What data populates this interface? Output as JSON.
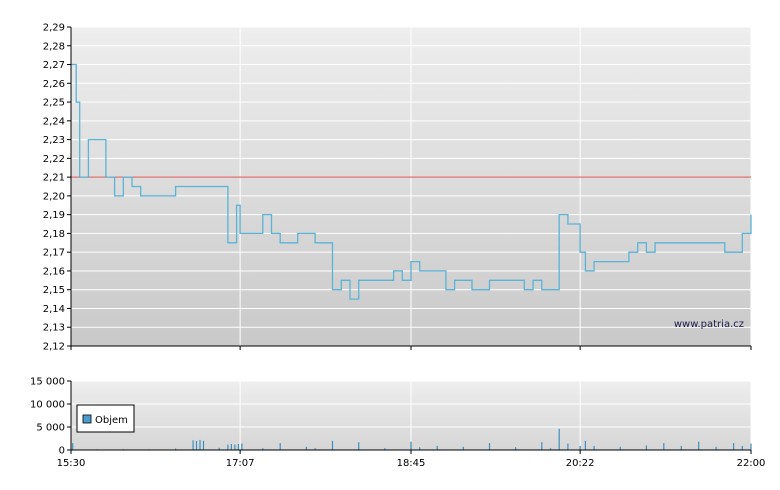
{
  "chart_data": [
    {
      "type": "line",
      "name": "price",
      "x": [
        "15:30",
        "15:33",
        "15:35",
        "15:40",
        "15:45",
        "15:50",
        "15:55",
        "16:00",
        "16:05",
        "16:07",
        "16:10",
        "16:15",
        "16:20",
        "16:25",
        "16:30",
        "16:35",
        "16:40",
        "16:45",
        "16:50",
        "16:55",
        "17:00",
        "17:05",
        "17:07",
        "17:10",
        "17:15",
        "17:20",
        "17:25",
        "17:30",
        "17:35",
        "17:40",
        "17:45",
        "17:50",
        "17:55",
        "18:00",
        "18:05",
        "18:08",
        "18:10",
        "18:15",
        "18:20",
        "18:25",
        "18:30",
        "18:35",
        "18:40",
        "18:45",
        "18:50",
        "18:55",
        "19:00",
        "19:05",
        "19:10",
        "19:15",
        "19:20",
        "19:25",
        "19:30",
        "19:35",
        "19:40",
        "19:45",
        "19:50",
        "19:55",
        "20:00",
        "20:05",
        "20:10",
        "20:15",
        "20:20",
        "20:22",
        "20:25",
        "20:30",
        "20:35",
        "20:40",
        "20:45",
        "20:50",
        "20:55",
        "21:00",
        "21:05",
        "21:10",
        "21:15",
        "21:20",
        "21:25",
        "21:30",
        "21:35",
        "21:40",
        "21:45",
        "21:50",
        "21:55",
        "22:00"
      ],
      "y": [
        2.27,
        2.25,
        2.21,
        2.23,
        2.23,
        2.21,
        2.2,
        2.21,
        2.205,
        2.205,
        2.2,
        2.2,
        2.2,
        2.2,
        2.205,
        2.205,
        2.205,
        2.205,
        2.205,
        2.205,
        2.175,
        2.195,
        2.18,
        2.18,
        2.18,
        2.19,
        2.18,
        2.175,
        2.175,
        2.18,
        2.18,
        2.175,
        2.175,
        2.15,
        2.155,
        2.155,
        2.145,
        2.155,
        2.155,
        2.155,
        2.155,
        2.16,
        2.155,
        2.165,
        2.16,
        2.16,
        2.16,
        2.15,
        2.155,
        2.155,
        2.15,
        2.15,
        2.155,
        2.155,
        2.155,
        2.155,
        2.15,
        2.155,
        2.15,
        2.15,
        2.19,
        2.185,
        2.185,
        2.17,
        2.16,
        2.165,
        2.165,
        2.165,
        2.165,
        2.17,
        2.175,
        2.17,
        2.175,
        2.175,
        2.175,
        2.175,
        2.175,
        2.175,
        2.175,
        2.175,
        2.17,
        2.17,
        2.18,
        2.19
      ],
      "reference_line": 2.21,
      "ylim": [
        2.12,
        2.29
      ],
      "yticks": [
        "2,12",
        "2,13",
        "2,14",
        "2,15",
        "2,16",
        "2,17",
        "2,18",
        "2,19",
        "2,20",
        "2,21",
        "2,22",
        "2,23",
        "2,24",
        "2,25",
        "2,26",
        "2,27",
        "2,28",
        "2,29"
      ],
      "grid": true,
      "watermark": "www.patria.cz",
      "colors": {
        "line": "#5ab4d8",
        "reference": "#e07070"
      }
    },
    {
      "type": "bar",
      "name": "volume",
      "legend": "Objem",
      "legend_position": "top-left",
      "x": [
        "15:31",
        "15:45",
        "16:00",
        "16:15",
        "16:30",
        "16:40",
        "16:42",
        "16:44",
        "16:46",
        "16:55",
        "17:00",
        "17:02",
        "17:04",
        "17:06",
        "17:08",
        "17:20",
        "17:30",
        "17:45",
        "17:50",
        "18:00",
        "18:15",
        "18:30",
        "18:45",
        "18:50",
        "19:00",
        "19:15",
        "19:30",
        "19:45",
        "20:00",
        "20:05",
        "20:10",
        "20:15",
        "20:22",
        "20:25",
        "20:30",
        "20:45",
        "21:00",
        "21:10",
        "21:20",
        "21:30",
        "21:40",
        "21:50",
        "21:55",
        "22:00"
      ],
      "values": [
        1500,
        150,
        200,
        150,
        300,
        2100,
        2000,
        2200,
        2000,
        500,
        1200,
        1300,
        1200,
        1300,
        1400,
        400,
        1500,
        700,
        400,
        2000,
        1700,
        400,
        1800,
        600,
        900,
        700,
        1500,
        600,
        1700,
        400,
        4600,
        1400,
        900,
        2000,
        900,
        700,
        1000,
        1500,
        900,
        1800,
        700,
        1500,
        900,
        1400
      ],
      "ylim": [
        0,
        15000
      ],
      "yticks": [
        "0",
        "5 000",
        "10 000",
        "15 000"
      ],
      "colors": {
        "bar": "#3d8fc0",
        "legend_swatch": "#4c9bd0"
      }
    }
  ],
  "x_ticks": [
    "15:30",
    "17:07",
    "18:45",
    "20:22",
    "22:00"
  ]
}
